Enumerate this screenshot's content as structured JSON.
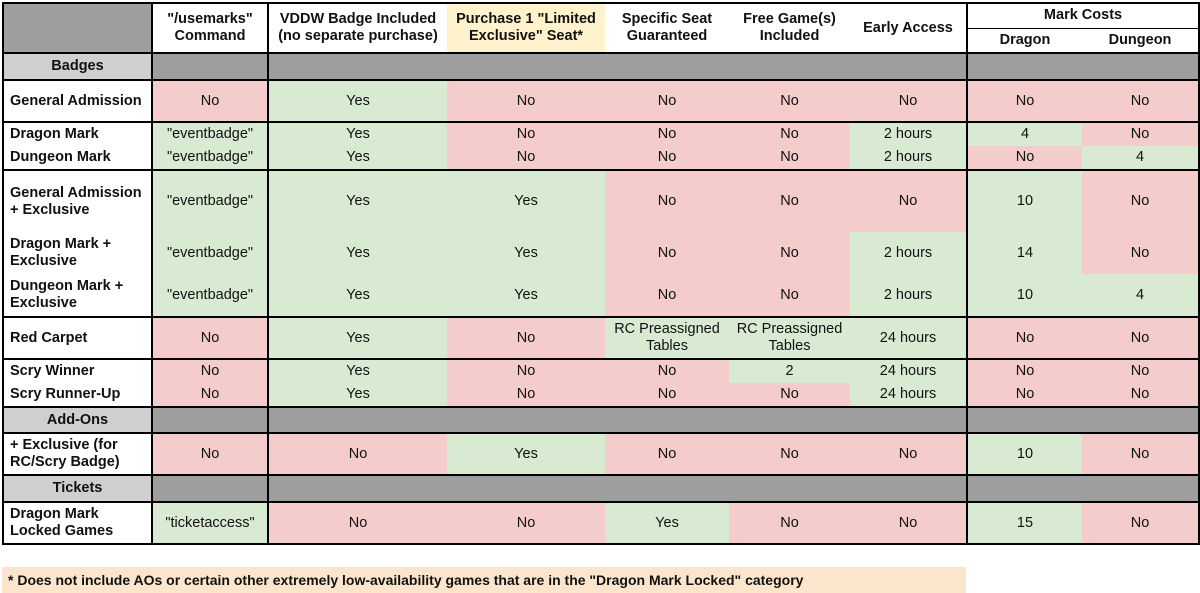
{
  "header": {
    "c1": "\"/usemarks\" Command",
    "c2": "VDDW Badge Included (no separate purchase)",
    "c3": "Purchase 1 \"Limited Exclusive\" Seat*",
    "c4": "Specific Seat Guaranteed",
    "c5": "Free Game(s) Included",
    "c6": "Early Access",
    "mark_costs": "Mark Costs",
    "dragon": "Dragon",
    "dungeon": "Dungeon"
  },
  "sections": {
    "badges": "Badges",
    "addons": "Add-Ons",
    "tickets": "Tickets"
  },
  "rows": {
    "ga": {
      "label": "General Admission",
      "cells": [
        "No",
        "Yes",
        "No",
        "No",
        "No",
        "No",
        "No",
        "No"
      ]
    },
    "dm": {
      "label": "Dragon Mark",
      "cells": [
        "\"eventbadge\"",
        "Yes",
        "No",
        "No",
        "No",
        "2 hours",
        "4",
        "No"
      ]
    },
    "dg": {
      "label": "Dungeon Mark",
      "cells": [
        "\"eventbadge\"",
        "Yes",
        "No",
        "No",
        "No",
        "2 hours",
        "No",
        "4"
      ]
    },
    "gax": {
      "label": "General Admission + Exclusive",
      "cells": [
        "\"eventbadge\"",
        "Yes",
        "Yes",
        "No",
        "No",
        "No",
        "10",
        "No"
      ]
    },
    "dmx": {
      "label": "Dragon Mark + Exclusive",
      "cells": [
        "\"eventbadge\"",
        "Yes",
        "Yes",
        "No",
        "No",
        "2 hours",
        "14",
        "No"
      ]
    },
    "dgx": {
      "label": "Dungeon Mark + Exclusive",
      "cells": [
        "\"eventbadge\"",
        "Yes",
        "Yes",
        "No",
        "No",
        "2 hours",
        "10",
        "4"
      ]
    },
    "rc": {
      "label": "Red Carpet",
      "cells": [
        "No",
        "Yes",
        "No",
        "RC Preassigned Tables",
        "RC Preassigned Tables",
        "24 hours",
        "No",
        "No"
      ]
    },
    "sw": {
      "label": "Scry Winner",
      "cells": [
        "No",
        "Yes",
        "No",
        "No",
        "2",
        "24 hours",
        "No",
        "No"
      ]
    },
    "sr": {
      "label": "Scry Runner-Up",
      "cells": [
        "No",
        "Yes",
        "No",
        "No",
        "No",
        "24 hours",
        "No",
        "No"
      ]
    },
    "ex": {
      "label": "+ Exclusive (for RC/Scry Badge)",
      "cells": [
        "No",
        "No",
        "Yes",
        "No",
        "No",
        "No",
        "10",
        "No"
      ]
    },
    "dml": {
      "label": "Dragon Mark Locked Games",
      "cells": [
        "\"ticketaccess\"",
        "No",
        "No",
        "Yes",
        "No",
        "No",
        "15",
        "No"
      ]
    }
  },
  "footnote": "* Does not include AOs or certain other extremely low-availability games that are in the \"Dragon Mark Locked\" category",
  "colors": {
    "no": "#f4cccc",
    "yes": "#d9ead3",
    "highlight": "#fff2cc",
    "section": "#9e9e9e",
    "section_label": "#cfcfcf",
    "footnote": "#fce5cd"
  }
}
